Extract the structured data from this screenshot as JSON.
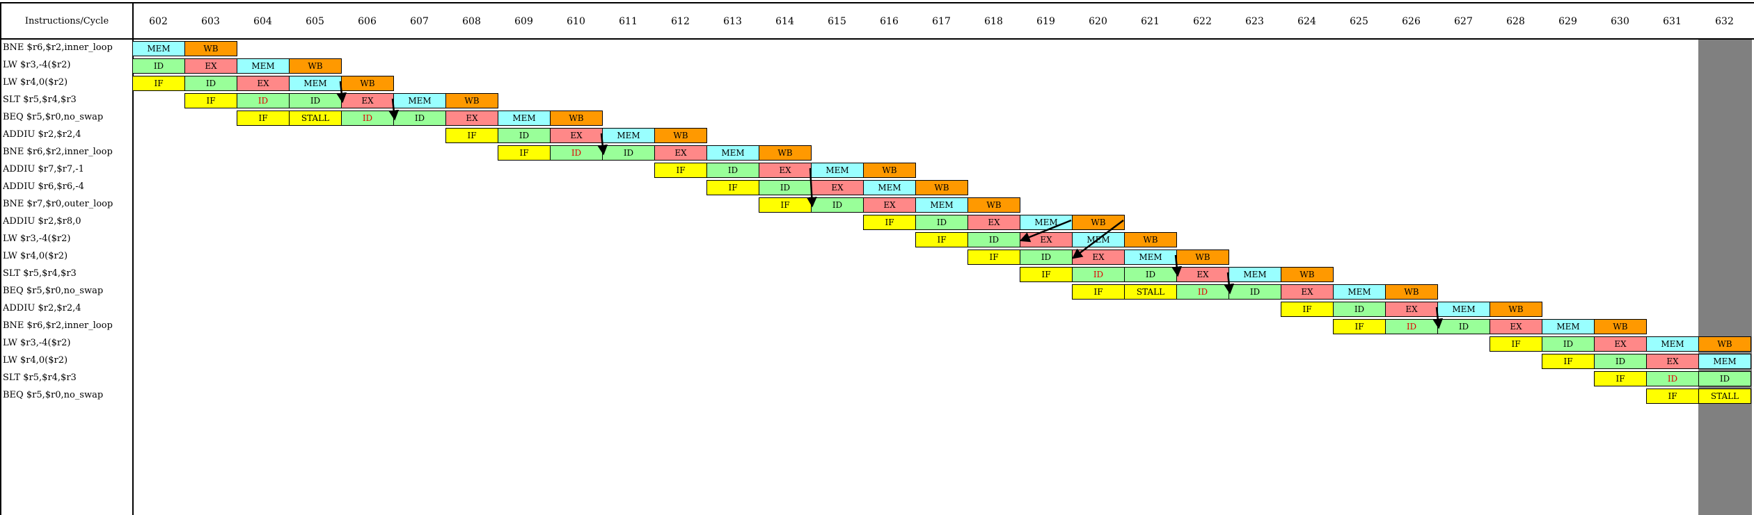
{
  "header": {
    "title": "Instructions/Cycle"
  },
  "cycles": [
    "602",
    "603",
    "604",
    "605",
    "606",
    "607",
    "608",
    "609",
    "610",
    "611",
    "612",
    "613",
    "614",
    "615",
    "616",
    "617",
    "618",
    "619",
    "620",
    "621",
    "622",
    "623",
    "624",
    "625",
    "626",
    "627",
    "628",
    "629",
    "630",
    "631",
    "632"
  ],
  "current_cycle": "632",
  "stage_colors": {
    "IF": "#ffff00",
    "ID": "#99ff99",
    "EX": "#ff8888",
    "MEM": "#99ffff",
    "WB": "#ff9900",
    "STALL": "#ffff00"
  },
  "instructions": [
    {
      "label": "BNE $r6,$r2,inner_loop",
      "start": 0,
      "stages": [
        "MEM",
        "WB"
      ]
    },
    {
      "label": "LW $r3,-4($r2)",
      "start": 0,
      "stages": [
        "ID",
        "EX",
        "MEM",
        "WB"
      ]
    },
    {
      "label": "LW $r4,0($r2)",
      "start": 0,
      "stages": [
        "IF",
        "ID",
        "EX",
        "MEM",
        "WB"
      ]
    },
    {
      "label": "SLT $r5,$r4,$r3",
      "start": 1,
      "stages": [
        "IF",
        "ID*",
        "ID",
        "EX",
        "MEM",
        "WB"
      ]
    },
    {
      "label": "BEQ $r5,$r0,no_swap",
      "start": 2,
      "stages": [
        "IF",
        "STALL",
        "ID*",
        "ID",
        "EX",
        "MEM",
        "WB"
      ]
    },
    {
      "label": "ADDIU $r2,$r2,4",
      "start": 6,
      "stages": [
        "IF",
        "ID",
        "EX",
        "MEM",
        "WB"
      ]
    },
    {
      "label": "BNE $r6,$r2,inner_loop",
      "start": 7,
      "stages": [
        "IF",
        "ID*",
        "ID",
        "EX",
        "MEM",
        "WB"
      ]
    },
    {
      "label": "ADDIU $r7,$r7,-1",
      "start": 10,
      "stages": [
        "IF",
        "ID",
        "EX",
        "MEM",
        "WB"
      ]
    },
    {
      "label": "ADDIU $r6,$r6,-4",
      "start": 11,
      "stages": [
        "IF",
        "ID",
        "EX",
        "MEM",
        "WB"
      ]
    },
    {
      "label": "BNE $r7,$r0,outer_loop",
      "start": 12,
      "stages": [
        "IF",
        "ID",
        "EX",
        "MEM",
        "WB"
      ]
    },
    {
      "label": "ADDIU $r2,$r8,0",
      "start": 14,
      "stages": [
        "IF",
        "ID",
        "EX",
        "MEM",
        "WB"
      ]
    },
    {
      "label": "LW $r3,-4($r2)",
      "start": 15,
      "stages": [
        "IF",
        "ID",
        "EX",
        "MEM",
        "WB"
      ]
    },
    {
      "label": "LW $r4,0($r2)",
      "start": 16,
      "stages": [
        "IF",
        "ID",
        "EX",
        "MEM",
        "WB"
      ]
    },
    {
      "label": "SLT $r5,$r4,$r3",
      "start": 17,
      "stages": [
        "IF",
        "ID*",
        "ID",
        "EX",
        "MEM",
        "WB"
      ]
    },
    {
      "label": "BEQ $r5,$r0,no_swap",
      "start": 18,
      "stages": [
        "IF",
        "STALL",
        "ID*",
        "ID",
        "EX",
        "MEM",
        "WB"
      ]
    },
    {
      "label": "ADDIU $r2,$r2,4",
      "start": 22,
      "stages": [
        "IF",
        "ID",
        "EX",
        "MEM",
        "WB"
      ]
    },
    {
      "label": "BNE $r6,$r2,inner_loop",
      "start": 23,
      "stages": [
        "IF",
        "ID*",
        "ID",
        "EX",
        "MEM",
        "WB"
      ]
    },
    {
      "label": "LW $r3,-4($r2)",
      "start": 26,
      "stages": [
        "IF",
        "ID",
        "EX",
        "MEM",
        "WB"
      ]
    },
    {
      "label": "LW $r4,0($r2)",
      "start": 27,
      "stages": [
        "IF",
        "ID",
        "EX",
        "MEM"
      ]
    },
    {
      "label": "SLT $r5,$r4,$r3",
      "start": 28,
      "stages": [
        "IF",
        "ID*",
        "ID"
      ]
    },
    {
      "label": "BEQ $r5,$r0,no_swap",
      "start": 29,
      "stages": [
        "IF",
        "STALL"
      ]
    }
  ],
  "forwarding_arrows": [
    {
      "from_row": 2,
      "from_col": 3,
      "to_row": 3,
      "to_col": 4
    },
    {
      "from_row": 3,
      "from_col": 4,
      "to_row": 4,
      "to_col": 5
    },
    {
      "from_row": 5,
      "from_col": 8,
      "to_row": 6,
      "to_col": 9
    },
    {
      "from_row": 7,
      "from_col": 12,
      "to_row": 9,
      "to_col": 13
    },
    {
      "from_row": 10,
      "from_col": 17,
      "to_row": 11,
      "to_col": 17
    },
    {
      "from_row": 10,
      "from_col": 18,
      "to_row": 12,
      "to_col": 18
    },
    {
      "from_row": 12,
      "from_col": 19,
      "to_row": 13,
      "to_col": 20
    },
    {
      "from_row": 13,
      "from_col": 20,
      "to_row": 14,
      "to_col": 21
    },
    {
      "from_row": 15,
      "from_col": 24,
      "to_row": 16,
      "to_col": 25
    }
  ]
}
